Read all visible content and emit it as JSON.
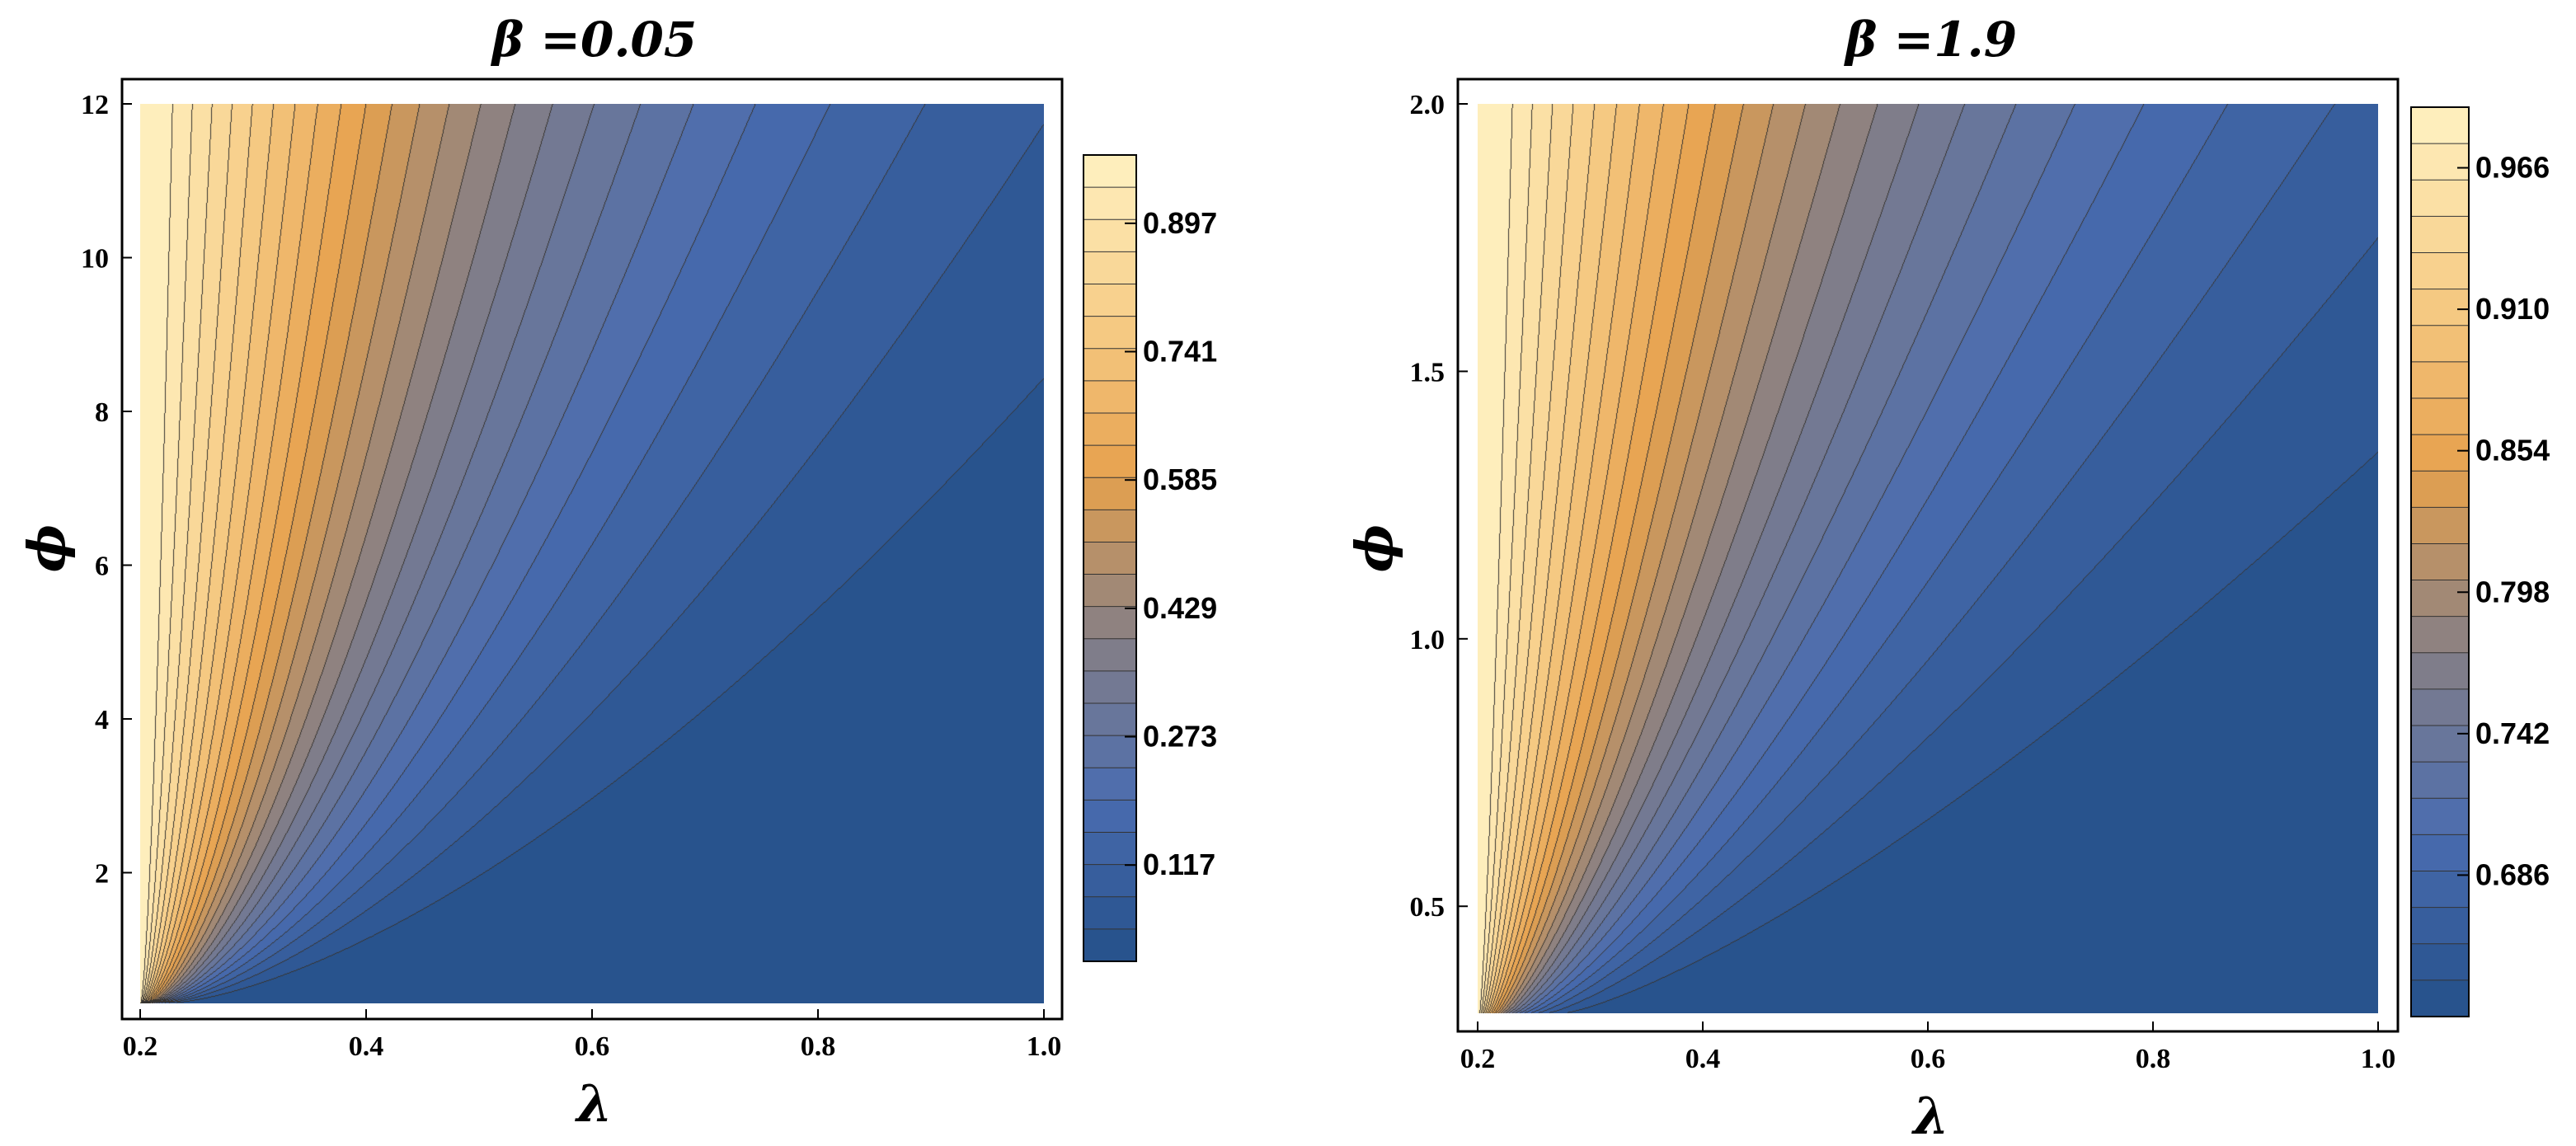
{
  "chart_data": [
    {
      "type": "contour",
      "title": "β =0.05",
      "xlabel": "λ",
      "ylabel": "ϕ",
      "xlim": [
        0.2,
        1.0
      ],
      "ylim": [
        0.3,
        12.0
      ],
      "xticks": [
        0.2,
        0.4,
        0.6,
        0.8,
        1.0
      ],
      "xtick_labels": [
        "0.2",
        "0.4",
        "0.6",
        "0.8",
        "1.0"
      ],
      "yticks": [
        2,
        4,
        6,
        8,
        10,
        12
      ],
      "ytick_labels": [
        "2",
        "4",
        "6",
        "8",
        "10",
        "12"
      ],
      "contour_levels": 25,
      "value_range": [
        0.0,
        0.98
      ],
      "legend_ticks": [
        0.117,
        0.273,
        0.429,
        0.585,
        0.741,
        0.897
      ],
      "legend_tick_labels": [
        "0.117",
        "0.273",
        "0.429",
        "0.585",
        "0.741",
        "0.897"
      ],
      "legend_placement": "right",
      "colormap": [
        "#245089",
        "#4a6cb0",
        "#857f86",
        "#e6a14d",
        "#f7cd88",
        "#fff2c2"
      ]
    },
    {
      "type": "contour",
      "title": "β =1.9",
      "xlabel": "λ",
      "ylabel": "ϕ",
      "xlim": [
        0.2,
        1.0
      ],
      "ylim": [
        0.3,
        2.0
      ],
      "xticks": [
        0.2,
        0.4,
        0.6,
        0.8,
        1.0
      ],
      "xtick_labels": [
        "0.2",
        "0.4",
        "0.6",
        "0.8",
        "1.0"
      ],
      "yticks": [
        0.5,
        1.0,
        1.5,
        2.0
      ],
      "ytick_labels": [
        "0.5",
        "1.0",
        "1.5",
        "2.0"
      ],
      "contour_levels": 25,
      "value_range": [
        0.63,
        0.99
      ],
      "legend_ticks": [
        0.686,
        0.742,
        0.798,
        0.854,
        0.91,
        0.966
      ],
      "legend_tick_labels": [
        "0.686",
        "0.742",
        "0.798",
        "0.854",
        "0.910",
        "0.966"
      ],
      "legend_placement": "right",
      "colormap": [
        "#245089",
        "#4a6cb0",
        "#857f86",
        "#e6a14d",
        "#f7cd88",
        "#fff2c2"
      ]
    }
  ]
}
